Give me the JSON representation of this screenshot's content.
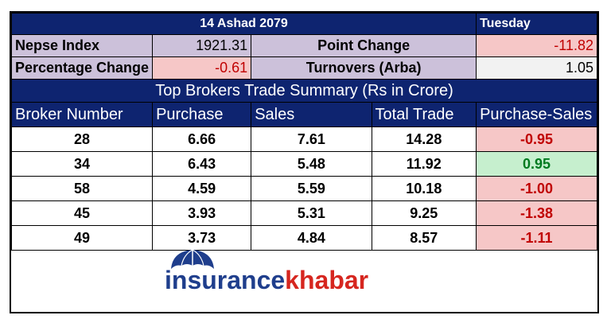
{
  "header": {
    "date": "14 Ashad 2079",
    "day": "Tuesday"
  },
  "summary": {
    "nepse_label": "Nepse Index",
    "nepse_value": "1921.31",
    "point_change_label": "Point Change",
    "point_change_value": "-11.82",
    "percentage_label": "Percentage Change",
    "percentage_value": "-0.61",
    "turnover_label": "Turnovers (Arba)",
    "turnover_value": "1.05"
  },
  "section_title": "Top Brokers Trade Summary (Rs in Crore)",
  "columns": [
    "Broker Number",
    "Purchase",
    "Sales",
    "Total Trade",
    "Purchase-Sales"
  ],
  "rows": [
    [
      "28",
      "6.66",
      "7.61",
      "14.28",
      "-0.95"
    ],
    [
      "34",
      "6.43",
      "5.48",
      "11.92",
      "0.95"
    ],
    [
      "58",
      "4.59",
      "5.59",
      "10.18",
      "-1.00"
    ],
    [
      "45",
      "3.93",
      "5.31",
      "9.25",
      "-1.38"
    ],
    [
      "49",
      "3.73",
      "4.84",
      "8.57",
      "-1.11"
    ]
  ],
  "colors": {
    "navy": "#0e2470",
    "negative": "#c00000",
    "positive": "#007a1f",
    "negative_bg": "#f6c7c7",
    "positive_bg": "#c6efce"
  },
  "logo": {
    "part1": "insurance",
    "part2": "khabar",
    "icon": "umbrella-icon"
  }
}
